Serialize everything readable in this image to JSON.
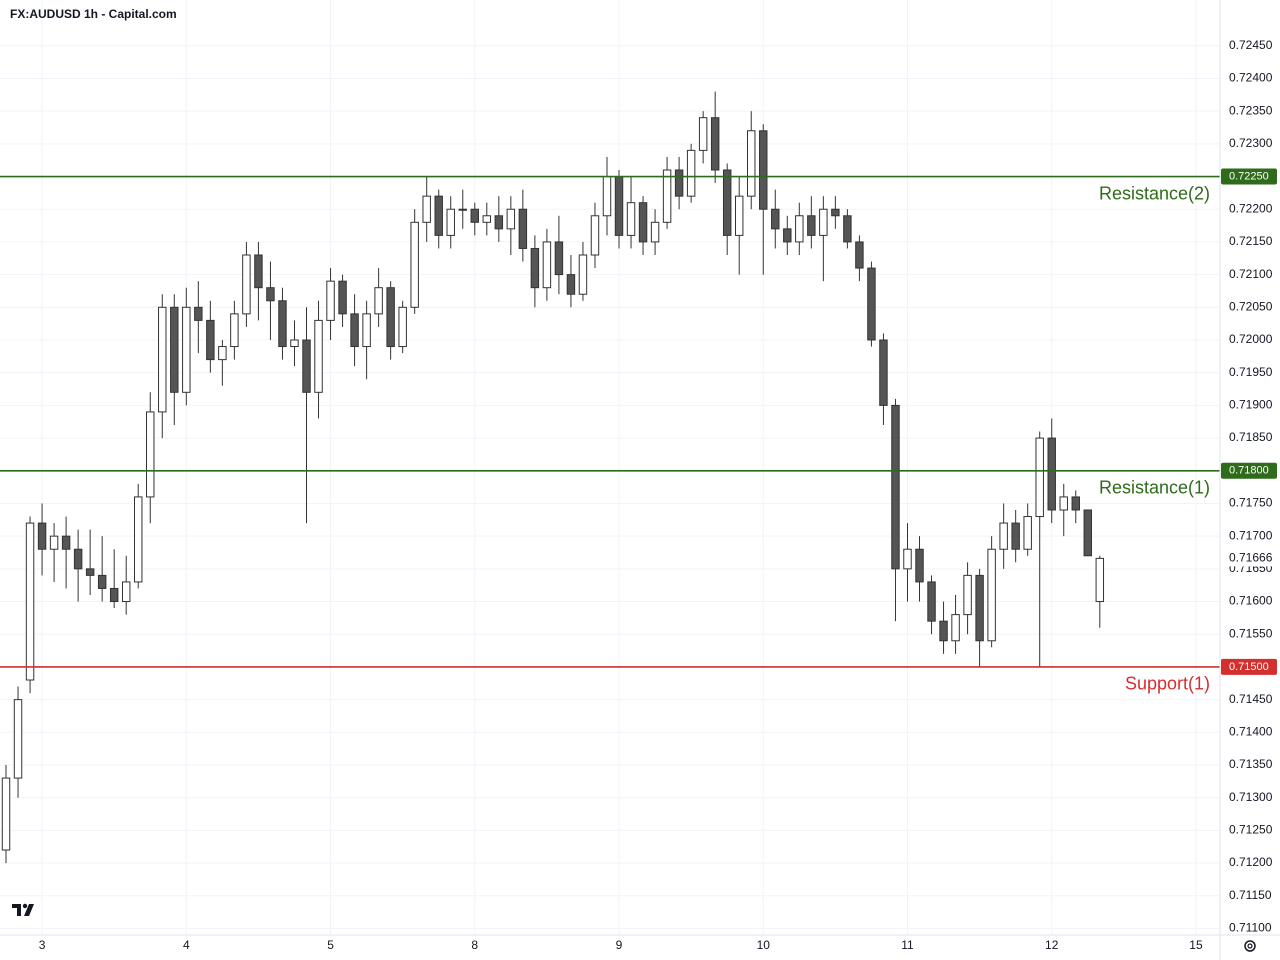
{
  "chart_data": {
    "type": "candlestick",
    "title": "FX:AUDUSD 1h - Capital.com",
    "up_color": "#ffffff",
    "down_color": "#555555",
    "wick_color": "#333333",
    "grid": true,
    "x": [
      1,
      3,
      5,
      7,
      9,
      11,
      13,
      15,
      17,
      19,
      21,
      23,
      25,
      27,
      29,
      31,
      33,
      35,
      37,
      39,
      41,
      43,
      45,
      47,
      49,
      51,
      53,
      55,
      57,
      59,
      61,
      63,
      65,
      67,
      69,
      71,
      73,
      75,
      77,
      79,
      81,
      83,
      85,
      87,
      89,
      91,
      93,
      95,
      97,
      99,
      101,
      103,
      105,
      107,
      109,
      111,
      113,
      115,
      117,
      119,
      121,
      123,
      125,
      127,
      129,
      131,
      133,
      135,
      137,
      139,
      141,
      143,
      145,
      147,
      149,
      151,
      153,
      155,
      157,
      159,
      161,
      163,
      165,
      167,
      169,
      171,
      173,
      175,
      177,
      179,
      181,
      183
    ],
    "open": [
      0.7122,
      0.7133,
      0.7148,
      0.7172,
      0.7168,
      0.717,
      0.7168,
      0.7165,
      0.7164,
      0.7162,
      0.716,
      0.7163,
      0.7176,
      0.7189,
      0.7205,
      0.7192,
      0.7205,
      0.7203,
      0.7197,
      0.7199,
      0.7204,
      0.7213,
      0.7208,
      0.7206,
      0.7199,
      0.72,
      0.7192,
      0.7203,
      0.7209,
      0.7204,
      0.7199,
      0.7204,
      0.7208,
      0.7199,
      0.7205,
      0.7218,
      0.7222,
      0.7216,
      0.722,
      0.722,
      0.7218,
      0.7219,
      0.7217,
      0.722,
      0.7214,
      0.7208,
      0.7215,
      0.721,
      0.7207,
      0.7213,
      0.7219,
      0.7225,
      0.7216,
      0.7221,
      0.7215,
      0.7218,
      0.7226,
      0.7222,
      0.7229,
      0.7234,
      0.7226,
      0.7216,
      0.7222,
      0.7232,
      0.722,
      0.7217,
      0.7215,
      0.7219,
      0.7216,
      0.722,
      0.7219,
      0.7215,
      0.7211,
      0.72,
      0.719,
      0.7165,
      0.7168,
      0.7163,
      0.7157,
      0.7154,
      0.7158,
      0.7164,
      0.7154,
      0.7168,
      0.7172,
      0.7168,
      0.7173,
      0.7185,
      0.7174,
      0.7176,
      0.7174,
      0.716
    ],
    "high": [
      0.7135,
      0.7147,
      0.7173,
      0.7175,
      0.7172,
      0.7173,
      0.7171,
      0.7171,
      0.717,
      0.7168,
      0.7167,
      0.7178,
      0.7192,
      0.7207,
      0.7207,
      0.7208,
      0.7209,
      0.7206,
      0.72,
      0.7206,
      0.7215,
      0.7215,
      0.7212,
      0.7208,
      0.7203,
      0.7205,
      0.7206,
      0.7211,
      0.721,
      0.7207,
      0.7206,
      0.7211,
      0.7209,
      0.7206,
      0.722,
      0.7225,
      0.7223,
      0.7222,
      0.7223,
      0.7221,
      0.7221,
      0.7222,
      0.7222,
      0.7223,
      0.7216,
      0.7217,
      0.7219,
      0.7213,
      0.7215,
      0.7221,
      0.7228,
      0.7226,
      0.7225,
      0.7222,
      0.722,
      0.7228,
      0.7228,
      0.723,
      0.7235,
      0.7238,
      0.7227,
      0.7225,
      0.7235,
      0.7233,
      0.7223,
      0.7219,
      0.7221,
      0.7222,
      0.7222,
      0.7222,
      0.722,
      0.7216,
      0.7212,
      0.7201,
      0.7191,
      0.7172,
      0.717,
      0.7164,
      0.716,
      0.7161,
      0.7166,
      0.7165,
      0.717,
      0.7175,
      0.7174,
      0.7175,
      0.7186,
      0.7188,
      0.7178,
      0.7177,
      0.7174,
      0.7167
    ],
    "low": [
      0.712,
      0.713,
      0.7146,
      0.7164,
      0.7163,
      0.7162,
      0.716,
      0.7161,
      0.716,
      0.7159,
      0.7158,
      0.7162,
      0.7172,
      0.7185,
      0.7187,
      0.719,
      0.7198,
      0.7195,
      0.7193,
      0.7197,
      0.7202,
      0.7203,
      0.72,
      0.7197,
      0.7196,
      0.7172,
      0.7188,
      0.72,
      0.7202,
      0.7196,
      0.7194,
      0.7202,
      0.7197,
      0.7198,
      0.7204,
      0.7215,
      0.7214,
      0.7214,
      0.7217,
      0.7216,
      0.7216,
      0.7215,
      0.7213,
      0.7212,
      0.7205,
      0.7206,
      0.7207,
      0.7205,
      0.7206,
      0.7211,
      0.7216,
      0.7214,
      0.7214,
      0.7213,
      0.7213,
      0.7217,
      0.722,
      0.7221,
      0.7227,
      0.7224,
      0.7213,
      0.721,
      0.722,
      0.721,
      0.7214,
      0.7213,
      0.7213,
      0.7214,
      0.7209,
      0.7217,
      0.7214,
      0.7209,
      0.7199,
      0.7187,
      0.7157,
      0.716,
      0.716,
      0.7155,
      0.7152,
      0.7152,
      0.7155,
      0.715,
      0.7153,
      0.7165,
      0.7166,
      0.7167,
      0.715,
      0.7172,
      0.717,
      0.7172,
      0.7167,
      0.7156
    ],
    "close": [
      0.7133,
      0.7145,
      0.7172,
      0.7168,
      0.717,
      0.7168,
      0.7165,
      0.7164,
      0.7162,
      0.716,
      0.7163,
      0.7176,
      0.7189,
      0.7205,
      0.7192,
      0.7205,
      0.7203,
      0.7197,
      0.7199,
      0.7204,
      0.7213,
      0.7208,
      0.7206,
      0.7199,
      0.72,
      0.7192,
      0.7203,
      0.7209,
      0.7204,
      0.7199,
      0.7204,
      0.7208,
      0.7199,
      0.7205,
      0.7218,
      0.7222,
      0.7216,
      0.722,
      0.722,
      0.7218,
      0.7219,
      0.7217,
      0.722,
      0.7214,
      0.7208,
      0.7215,
      0.721,
      0.7207,
      0.7213,
      0.7219,
      0.7225,
      0.7216,
      0.7221,
      0.7215,
      0.7218,
      0.7226,
      0.7222,
      0.7229,
      0.7234,
      0.7226,
      0.7216,
      0.7222,
      0.7232,
      0.722,
      0.7217,
      0.7215,
      0.7219,
      0.7216,
      0.722,
      0.7219,
      0.7215,
      0.7211,
      0.72,
      0.719,
      0.7165,
      0.7168,
      0.7163,
      0.7157,
      0.7154,
      0.7158,
      0.7164,
      0.7154,
      0.7168,
      0.7172,
      0.7168,
      0.7173,
      0.7185,
      0.7174,
      0.7176,
      0.7174,
      0.7167,
      0.71666
    ],
    "xlim": [
      0,
      203
    ],
    "xticks": [
      {
        "value": 7,
        "label": "3"
      },
      {
        "value": 31,
        "label": "4"
      },
      {
        "value": 55,
        "label": "5"
      },
      {
        "value": 79,
        "label": "8"
      },
      {
        "value": 103,
        "label": "9"
      },
      {
        "value": 127,
        "label": "10"
      },
      {
        "value": 151,
        "label": "11"
      },
      {
        "value": 175,
        "label": "12"
      },
      {
        "value": 199,
        "label": "15"
      }
    ],
    "ylim": [
      0.7109,
      0.7252
    ],
    "yticks": [
      {
        "value": 0.7245,
        "label": "0.72450"
      },
      {
        "value": 0.724,
        "label": "0.72400"
      },
      {
        "value": 0.7235,
        "label": "0.72350"
      },
      {
        "value": 0.723,
        "label": "0.72300"
      },
      {
        "value": 0.7225,
        "label": "0.72250"
      },
      {
        "value": 0.722,
        "label": "0.72200"
      },
      {
        "value": 0.7215,
        "label": "0.72150"
      },
      {
        "value": 0.721,
        "label": "0.72100"
      },
      {
        "value": 0.7205,
        "label": "0.72050"
      },
      {
        "value": 0.72,
        "label": "0.72000"
      },
      {
        "value": 0.7195,
        "label": "0.71950"
      },
      {
        "value": 0.719,
        "label": "0.71900"
      },
      {
        "value": 0.7185,
        "label": "0.71850"
      },
      {
        "value": 0.718,
        "label": "0.71800"
      },
      {
        "value": 0.7175,
        "label": "0.71750"
      },
      {
        "value": 0.717,
        "label": "0.71700"
      },
      {
        "value": 0.7165,
        "label": "0.71650"
      },
      {
        "value": 0.716,
        "label": "0.71600"
      },
      {
        "value": 0.7155,
        "label": "0.71550"
      },
      {
        "value": 0.715,
        "label": "0.71500"
      },
      {
        "value": 0.7145,
        "label": "0.71450"
      },
      {
        "value": 0.714,
        "label": "0.71400"
      },
      {
        "value": 0.7135,
        "label": "0.71350"
      },
      {
        "value": 0.713,
        "label": "0.71300"
      },
      {
        "value": 0.7125,
        "label": "0.71250"
      },
      {
        "value": 0.712,
        "label": "0.71200"
      },
      {
        "value": 0.7115,
        "label": "0.71150"
      },
      {
        "value": 0.711,
        "label": "0.71100"
      }
    ],
    "levels": [
      {
        "name": "Resistance(2)",
        "value": 0.7225,
        "value_label": "0.72250",
        "color": "#2e6b1a"
      },
      {
        "name": "Resistance(1)",
        "value": 0.718,
        "value_label": "0.71800",
        "color": "#2e6b1a"
      },
      {
        "name": "Support(1)",
        "value": 0.715,
        "value_label": "0.71500",
        "color": "#d32f2f"
      }
    ],
    "last_price": 0.71666
  }
}
